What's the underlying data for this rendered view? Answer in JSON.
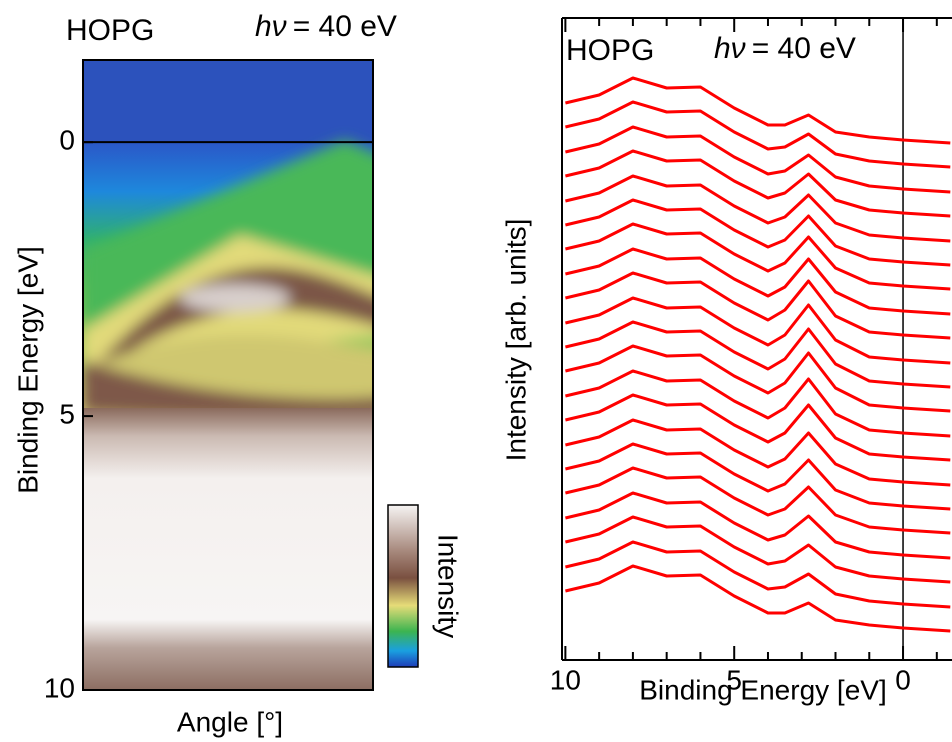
{
  "chart_data": [
    {
      "type": "heatmap",
      "title": "HOPG",
      "annotation_symbol": "hν",
      "annotation": "= 40 eV",
      "ylabel": "Binding Energy [eV]",
      "xlabel": "Angle [°]",
      "ylim": [
        -1.5,
        10
      ],
      "yticks": [
        0,
        5,
        10
      ],
      "reference_line": 0,
      "colorbar_label": "Intensity"
    },
    {
      "type": "line",
      "title": "HOPG",
      "annotation_symbol": "hν",
      "annotation": "= 40 eV",
      "xlabel": "Binding Energy [eV]",
      "ylabel": "Intensity [arb. units]",
      "xlim": [
        10.1,
        -1.45
      ],
      "xticks": [
        10,
        5,
        0
      ],
      "xticks_minor": [
        9,
        8,
        7,
        6,
        4,
        3,
        2,
        1,
        -1
      ],
      "ylim": [
        0,
        642
      ],
      "reference_line": 0,
      "color": "#ff0000",
      "x": [
        10,
        9,
        8,
        7,
        6,
        5,
        4,
        3.5,
        2.8,
        2,
        1,
        0,
        -1.4
      ],
      "series": [
        {
          "values": [
            557,
            565,
            582,
            572,
            573,
            552,
            535,
            535,
            545,
            528,
            523,
            520,
            517
          ]
        },
        {
          "values": [
            533,
            541,
            558,
            548,
            549,
            528,
            511,
            513,
            526,
            506,
            499,
            496,
            493
          ]
        },
        {
          "values": [
            508,
            516,
            533,
            523,
            524,
            503,
            486,
            489,
            505,
            483,
            474,
            471,
            468
          ]
        },
        {
          "values": [
            484,
            492,
            509,
            499,
            500,
            479,
            462,
            467,
            486,
            460,
            450,
            447,
            444
          ]
        },
        {
          "values": [
            459,
            467,
            484,
            474,
            475,
            454,
            437,
            443,
            465,
            437,
            425,
            422,
            419
          ]
        },
        {
          "values": [
            435,
            443,
            460,
            450,
            451,
            430,
            413,
            420,
            444,
            414,
            401,
            398,
            395
          ]
        },
        {
          "values": [
            411,
            419,
            436,
            426,
            427,
            406,
            389,
            397,
            423,
            392,
            377,
            374,
            371
          ]
        },
        {
          "values": [
            386,
            394,
            411,
            401,
            402,
            381,
            364,
            373,
            401,
            368,
            352,
            349,
            346
          ]
        },
        {
          "values": [
            362,
            370,
            387,
            377,
            378,
            357,
            340,
            350,
            379,
            344,
            328,
            325,
            322
          ]
        },
        {
          "values": [
            337,
            345,
            362,
            352,
            353,
            332,
            315,
            325,
            355,
            320,
            303,
            300,
            297
          ]
        },
        {
          "values": [
            313,
            321,
            338,
            328,
            329,
            308,
            291,
            301,
            331,
            296,
            279,
            276,
            273
          ]
        },
        {
          "values": [
            289,
            297,
            314,
            304,
            305,
            284,
            267,
            277,
            307,
            272,
            255,
            252,
            249
          ]
        },
        {
          "values": [
            264,
            272,
            289,
            279,
            280,
            259,
            242,
            252,
            281,
            246,
            230,
            227,
            224
          ]
        },
        {
          "values": [
            240,
            248,
            265,
            255,
            256,
            235,
            218,
            227,
            255,
            222,
            206,
            203,
            200
          ]
        },
        {
          "values": [
            215,
            223,
            240,
            230,
            231,
            210,
            193,
            201,
            227,
            196,
            181,
            178,
            175
          ]
        },
        {
          "values": [
            191,
            199,
            216,
            206,
            207,
            186,
            169,
            176,
            200,
            170,
            157,
            154,
            151
          ]
        },
        {
          "values": [
            167,
            175,
            192,
            182,
            183,
            162,
            145,
            151,
            173,
            145,
            133,
            130,
            127
          ]
        },
        {
          "values": [
            142,
            150,
            167,
            157,
            158,
            137,
            120,
            125,
            144,
            118,
            108,
            105,
            102
          ]
        },
        {
          "values": [
            118,
            126,
            143,
            133,
            134,
            113,
            96,
            99,
            115,
            93,
            84,
            81,
            78
          ]
        },
        {
          "values": [
            93,
            101,
            118,
            108,
            109,
            88,
            71,
            73,
            86,
            66,
            59,
            56,
            53
          ]
        },
        {
          "values": [
            69,
            77,
            94,
            84,
            85,
            64,
            47,
            47,
            57,
            40,
            35,
            32,
            29
          ]
        }
      ]
    }
  ]
}
